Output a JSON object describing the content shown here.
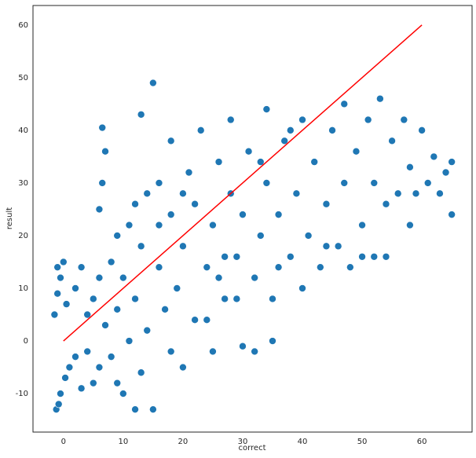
{
  "chart_data": {
    "type": "scatter",
    "xlabel": "correct",
    "ylabel": "result",
    "xlim": [
      -5.1,
      68.4
    ],
    "ylim": [
      -17.3,
      63.7
    ],
    "xticks": [
      0,
      10,
      20,
      30,
      40,
      50,
      60
    ],
    "yticks": [
      -10,
      0,
      10,
      20,
      30,
      40,
      50,
      60
    ],
    "grid": false,
    "series": [
      {
        "color": "#1f77b4",
        "x": [
          -1.5,
          -1,
          -0.5,
          0,
          -1,
          0.5,
          -1.2,
          -0.5,
          0.3,
          1,
          -0.8,
          2,
          3,
          4,
          4,
          5,
          5,
          6,
          6,
          6,
          6.5,
          7,
          6.5,
          7,
          8,
          8,
          9,
          9,
          10,
          10,
          11,
          12,
          12,
          13,
          13,
          14,
          14,
          15,
          15,
          16,
          16,
          17,
          18,
          18,
          19,
          20,
          20,
          21,
          22,
          22,
          23,
          24,
          25,
          25,
          26,
          27,
          28,
          28,
          29,
          30,
          30,
          31,
          32,
          33,
          34,
          34,
          35,
          35,
          36,
          37,
          38,
          39,
          40,
          40,
          41,
          42,
          43,
          44,
          45,
          46,
          47,
          47,
          48,
          49,
          50,
          51,
          52,
          52,
          53,
          54,
          55,
          56,
          57,
          58,
          58,
          59,
          60,
          61,
          62,
          63,
          64,
          65,
          65,
          3,
          2,
          9,
          11,
          13,
          18,
          24,
          32,
          36,
          44,
          50,
          54,
          27,
          29,
          33,
          38,
          20,
          16,
          12,
          26
        ],
        "y": [
          5,
          9,
          12,
          15,
          14,
          7,
          -13,
          -10,
          -7,
          -5,
          -12,
          10,
          14,
          5,
          -2,
          8,
          -8,
          12,
          -5,
          25,
          30,
          36,
          40.5,
          3,
          15,
          -3,
          20,
          6,
          -10,
          12,
          22,
          -13,
          8,
          43,
          18,
          28,
          2,
          49,
          -13,
          14,
          30,
          6,
          24,
          38,
          10,
          -5,
          18,
          32,
          4,
          26,
          40,
          14,
          -2,
          22,
          34,
          8,
          28,
          42,
          16,
          -1,
          24,
          36,
          12,
          20,
          44,
          30,
          0,
          8,
          24,
          38,
          16,
          28,
          42,
          10,
          20,
          34,
          14,
          26,
          40,
          18,
          45,
          30,
          14,
          36,
          22,
          42,
          16,
          30,
          46,
          26,
          38,
          28,
          42,
          22,
          33,
          28,
          40,
          30,
          35,
          28,
          32,
          24,
          34,
          -9,
          -3,
          -8,
          0,
          -6,
          -2,
          4,
          -2,
          14,
          18,
          16,
          16,
          16,
          8,
          34,
          40,
          28,
          22,
          26,
          12
        ]
      },
      {
        "type": "line",
        "color": "#ff0000",
        "x": [
          0,
          60
        ],
        "y": [
          0,
          60
        ]
      }
    ]
  }
}
